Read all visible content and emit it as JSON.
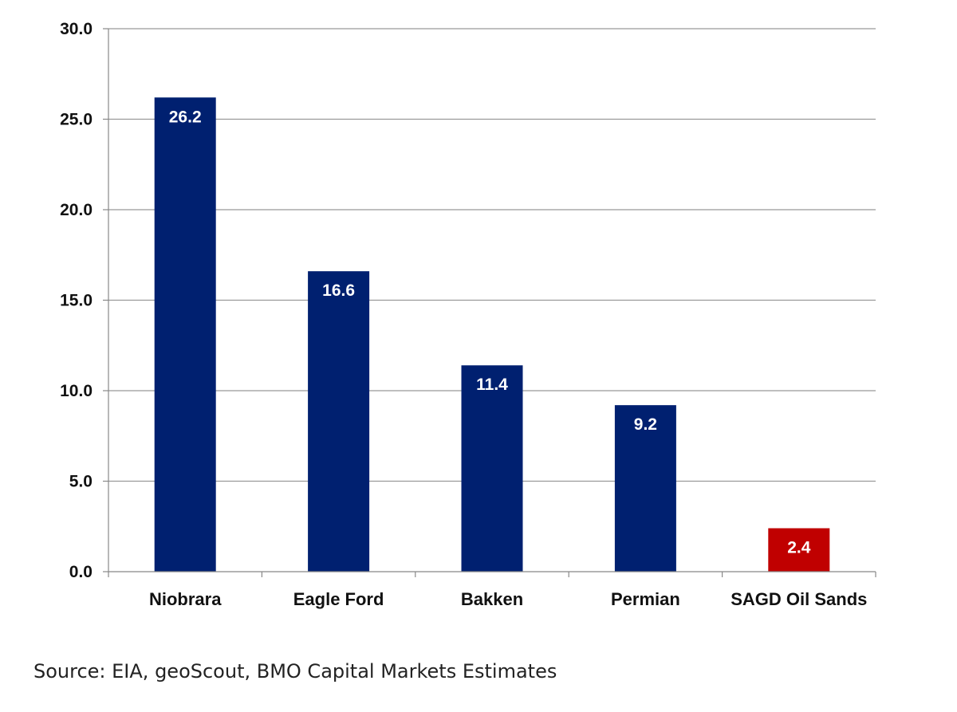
{
  "chart_data": {
    "type": "bar",
    "categories": [
      "Niobrara",
      "Eagle Ford",
      "Bakken",
      "Permian",
      "SAGD Oil Sands"
    ],
    "values": [
      26.2,
      16.6,
      11.4,
      9.2,
      2.4
    ],
    "data_labels": [
      "26.2",
      "16.6",
      "11.4",
      "9.2",
      "2.4"
    ],
    "bar_colors": [
      "#002070",
      "#002070",
      "#002070",
      "#002070",
      "#C00000"
    ],
    "ylim": [
      0,
      30
    ],
    "yticks": [
      0,
      5,
      10,
      15,
      20,
      25,
      30
    ],
    "ytick_labels": [
      "0.0",
      "5.0",
      "10.0",
      "15.0",
      "20.0",
      "25.0",
      "30.0"
    ],
    "grid": true,
    "gridline_color": "#999999",
    "legend": "none",
    "title": "",
    "xlabel": "",
    "ylabel": ""
  },
  "source_note": "Source: EIA, geoScout, BMO Capital Markets Estimates"
}
